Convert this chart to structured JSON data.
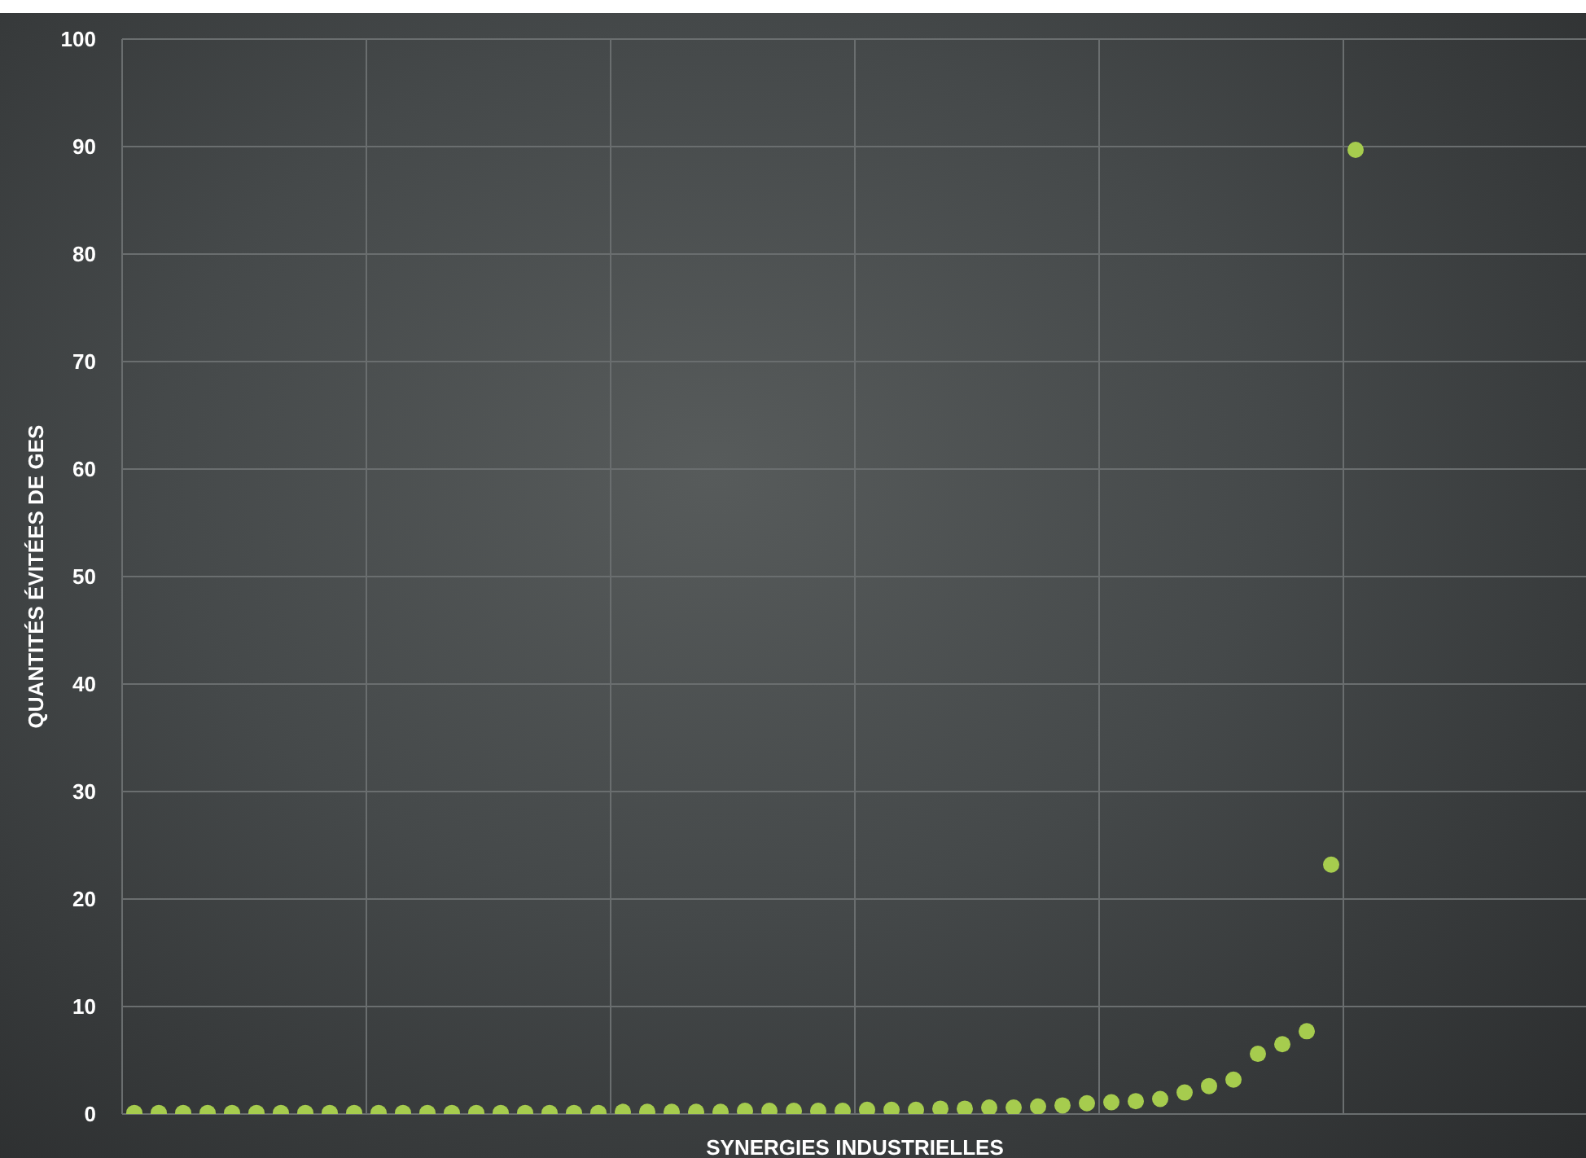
{
  "chart_data": {
    "type": "scatter",
    "xlabel": "SYNERGIES INDUSTRIELLES",
    "ylabel": "QUANTITÉS ÉVITÉES DE GES",
    "categories": [
      null,
      null,
      null,
      null,
      null,
      null,
      null,
      null,
      null,
      null,
      null,
      null,
      null,
      null,
      null,
      null,
      null,
      null,
      null,
      null,
      null,
      null,
      null,
      null,
      null,
      null,
      null,
      null,
      null,
      null,
      null,
      null,
      null,
      null,
      null,
      null,
      null,
      null,
      null,
      null,
      null,
      null,
      null,
      null,
      null,
      null,
      null,
      null,
      null,
      null,
      null,
      null,
      null,
      null,
      null,
      null,
      null,
      null,
      null,
      null
    ],
    "series": [
      {
        "color": "#a6cc4e",
        "values": [
          0.1,
          0.1,
          0.1,
          0.1,
          0.1,
          0.1,
          0.1,
          0.1,
          0.1,
          0.1,
          0.1,
          0.1,
          0.1,
          0.1,
          0.1,
          0.1,
          0.1,
          0.1,
          0.1,
          0.1,
          0.2,
          0.2,
          0.2,
          0.2,
          0.2,
          0.3,
          0.3,
          0.3,
          0.3,
          0.3,
          0.4,
          0.4,
          0.4,
          0.5,
          0.5,
          0.6,
          0.6,
          0.7,
          0.8,
          1.0,
          1.1,
          1.2,
          1.4,
          2.0,
          2.6,
          3.2,
          5.6,
          6.5,
          7.7,
          23.2,
          89.7,
          null,
          null,
          null,
          null,
          null,
          null,
          null,
          null,
          null
        ]
      }
    ],
    "ylim": [
      0,
      100
    ],
    "yticks": [
      0,
      10,
      20,
      30,
      40,
      50,
      60,
      70,
      80,
      90,
      100
    ],
    "tick_labels": "y",
    "grid": true,
    "legend": false,
    "marker": "circle"
  }
}
